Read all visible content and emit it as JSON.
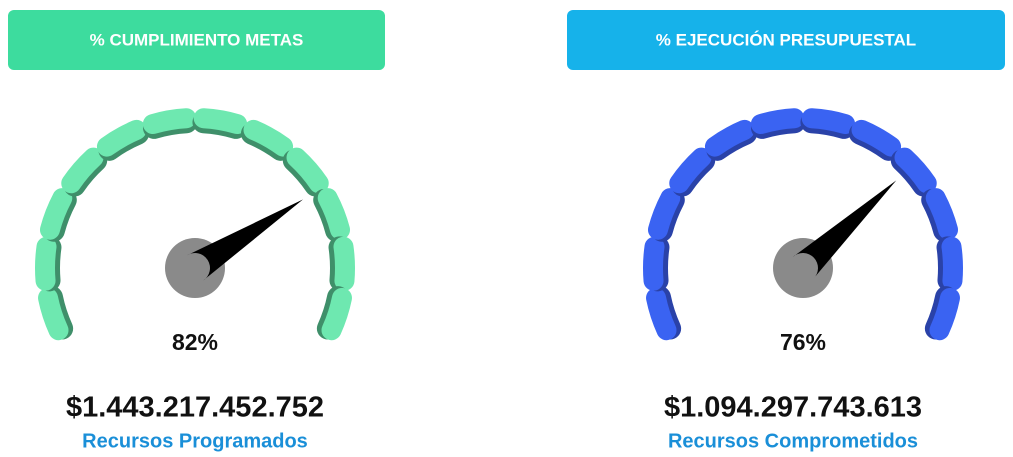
{
  "chart_data": [
    {
      "type": "gauge",
      "title": "% CUMPLIMIENTO METAS",
      "header_color": "#3ddc9e",
      "color": "#6ee8b0",
      "shade": "#3f8f6a",
      "value": 82,
      "value_label": "82%",
      "ylim": [
        0,
        100
      ],
      "amount": "$1.443.217.452.752",
      "subtitle": "Recursos Programados"
    },
    {
      "type": "gauge",
      "title": "% EJECUCIÓN PRESUPUESTAL",
      "header_color": "#16b2ea",
      "color": "#3a63f2",
      "shade": "#2a42a8",
      "value": 76,
      "value_label": "76%",
      "ylim": [
        0,
        100
      ],
      "amount": "$1.094.297.743.613",
      "subtitle": "Recursos Comprometidos"
    }
  ]
}
